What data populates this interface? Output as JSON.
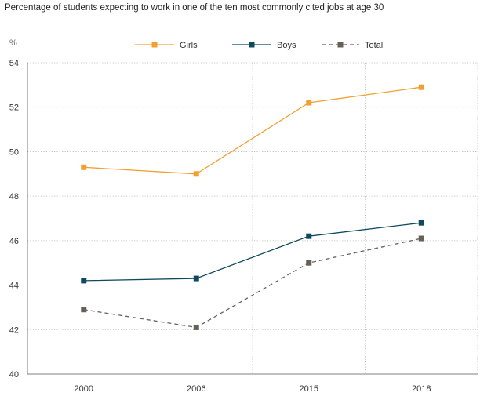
{
  "chart_data": {
    "type": "line",
    "title": "Percentage of students expecting to work in one of the ten most commonly cited jobs at age 30",
    "ylabel": "%",
    "xlabel": "",
    "categories": [
      "2000",
      "2006",
      "2015",
      "2018"
    ],
    "ylim": [
      40,
      54
    ],
    "yticks": [
      40,
      42,
      44,
      46,
      48,
      50,
      52,
      54
    ],
    "grid": true,
    "legend_position": "top",
    "series": [
      {
        "name": "Girls",
        "values": [
          49.3,
          49.0,
          52.2,
          52.9
        ],
        "color": "#f0a030",
        "dashed": false
      },
      {
        "name": "Boys",
        "values": [
          44.2,
          44.3,
          46.2,
          46.8
        ],
        "color": "#0e4a5c",
        "dashed": false
      },
      {
        "name": "Total",
        "values": [
          42.9,
          42.1,
          45.0,
          46.1
        ],
        "color": "#666059",
        "dashed": true
      }
    ]
  }
}
